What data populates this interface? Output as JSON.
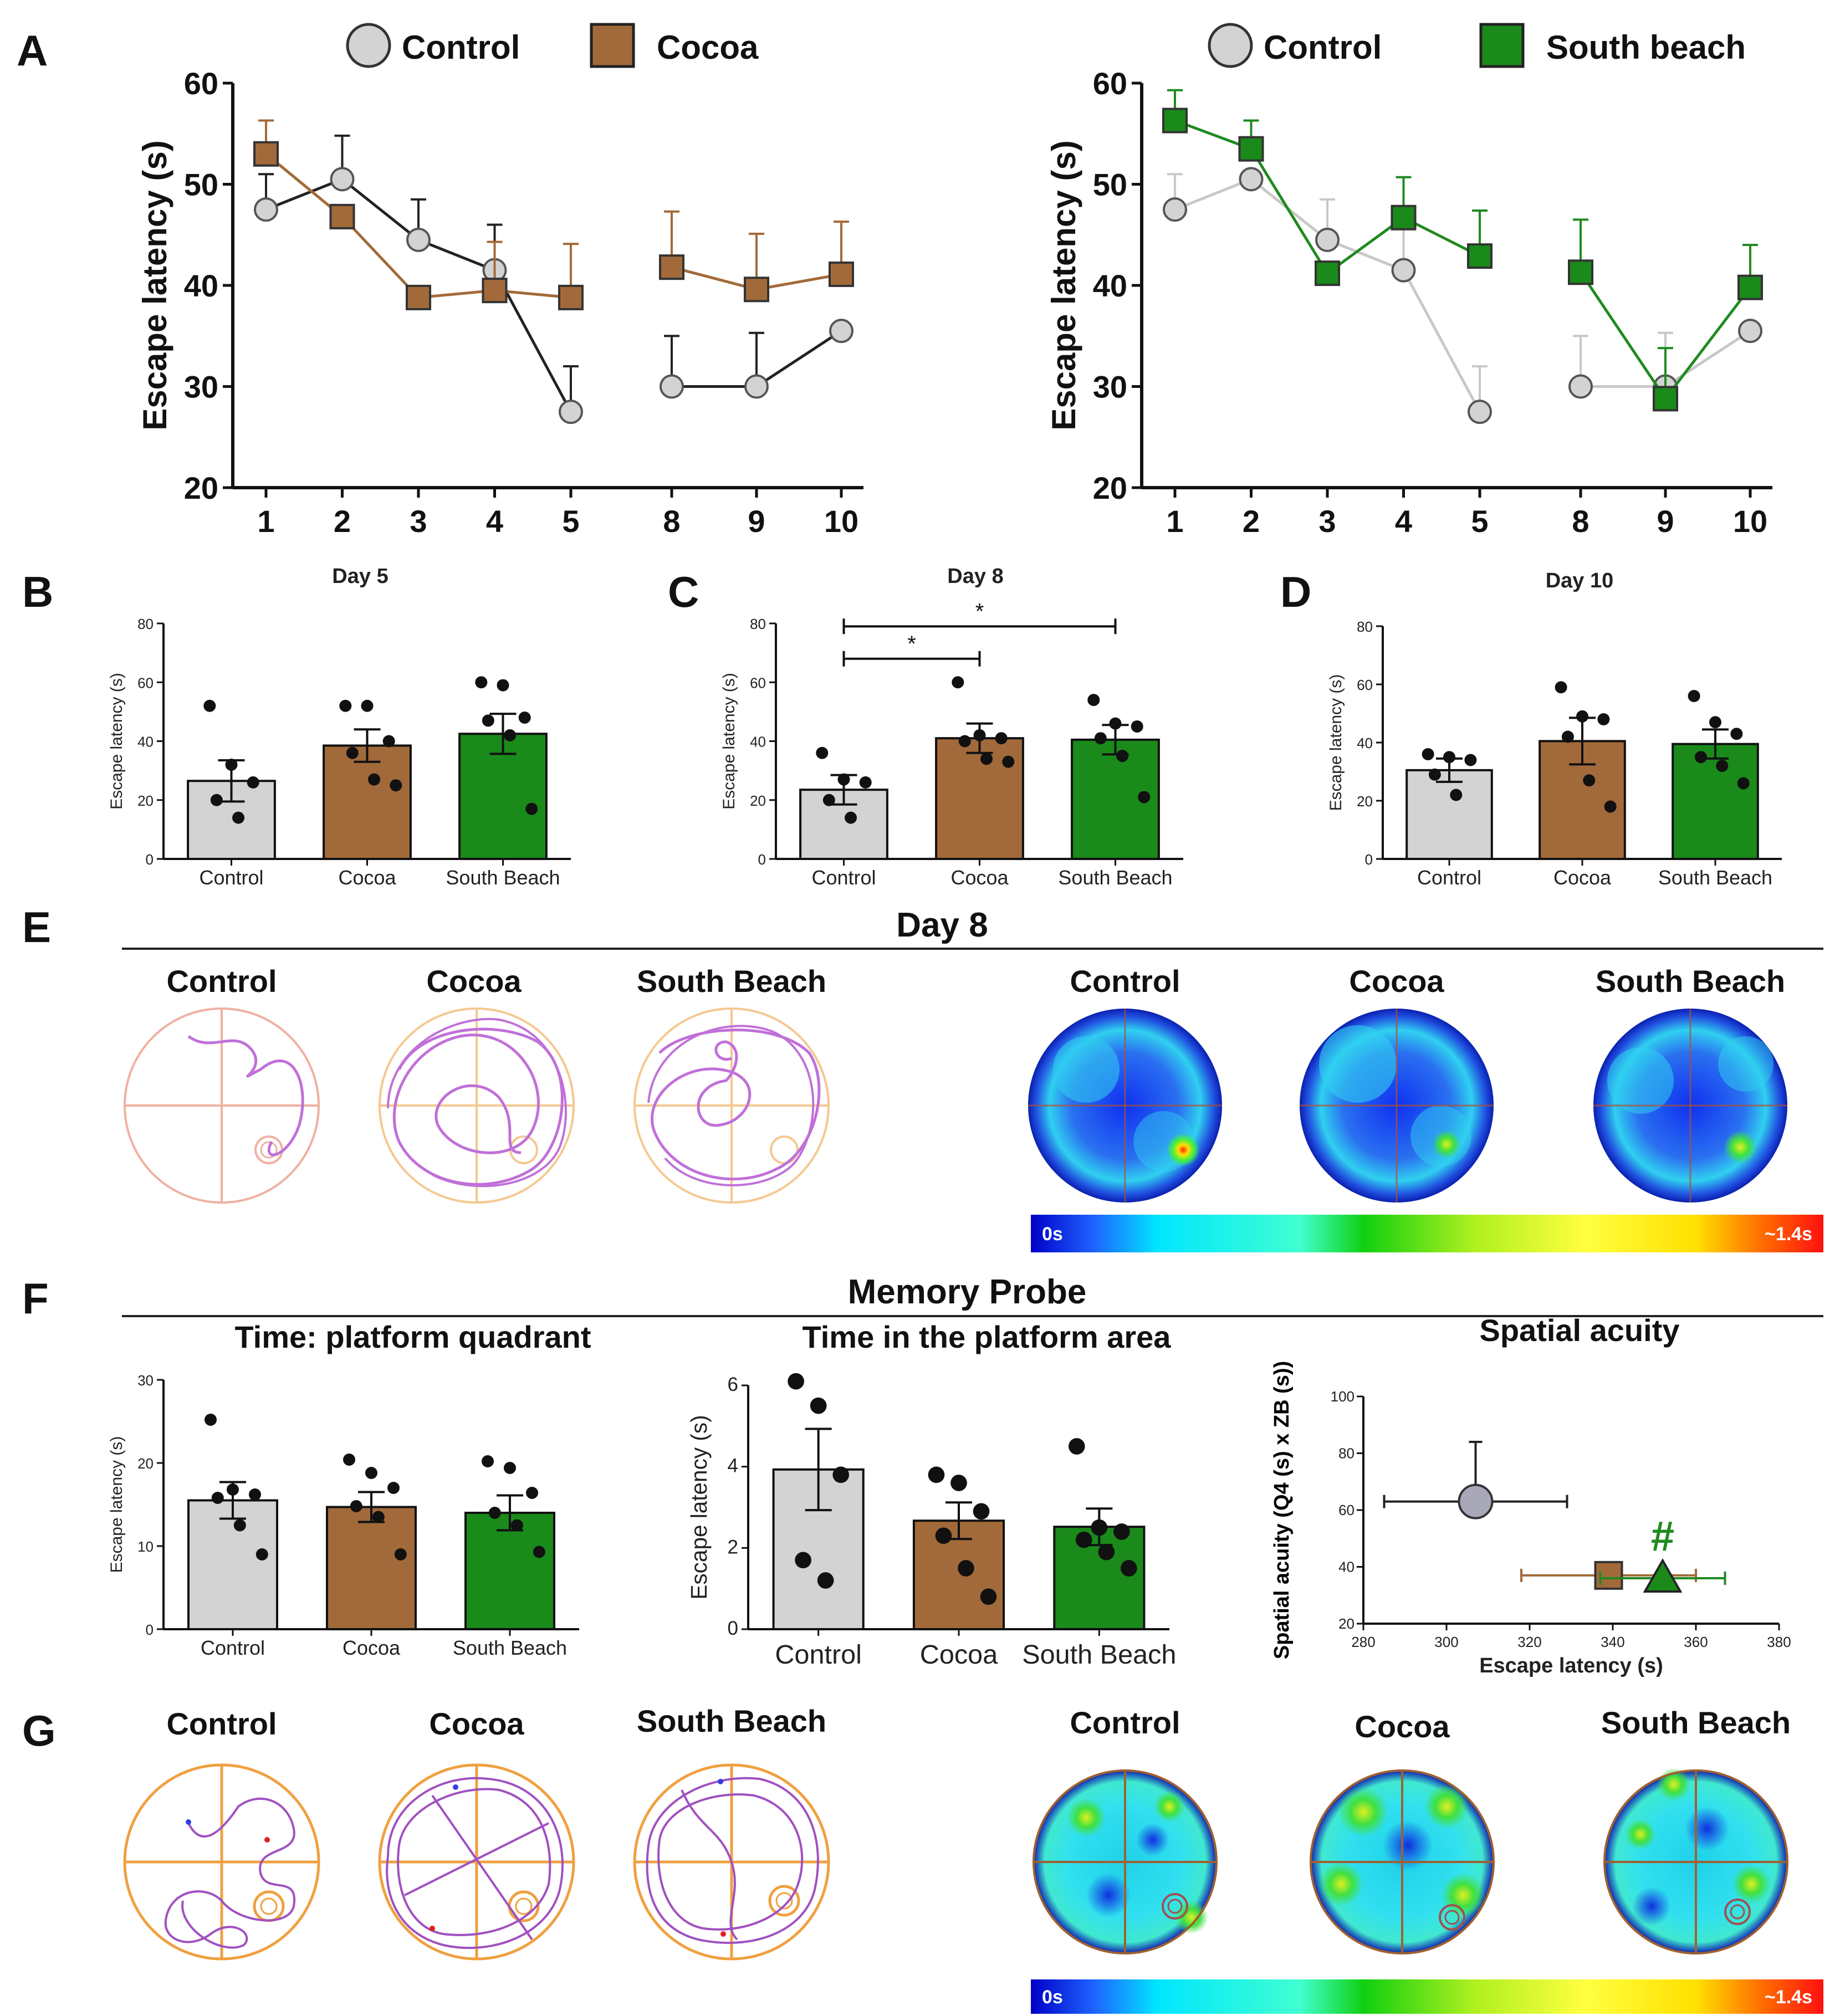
{
  "colors": {
    "control_fill": "#d3d3d3",
    "cocoa_fill": "#a26a3a",
    "southbeach_fill": "#1a8a1a",
    "control_line_left": "#222222",
    "control_line_right": "#c8c8c8",
    "cocoa_line": "#a26a3a",
    "southbeach_line": "#1f8a1f"
  },
  "panel_letters": [
    "A",
    "B",
    "C",
    "D",
    "E",
    "F",
    "G"
  ],
  "chart_data": [
    {
      "id": "A-left",
      "type": "line",
      "legend": [
        "Control",
        "Cocoa"
      ],
      "ylabel": "Escape latency (s)",
      "ylim": [
        20,
        60
      ],
      "yticks": [
        20,
        30,
        40,
        50,
        60
      ],
      "x_segments": [
        [
          1,
          2,
          3,
          4,
          5
        ],
        [
          8,
          9,
          10
        ]
      ],
      "series": [
        {
          "name": "Control",
          "x": [
            1,
            2,
            3,
            4,
            5,
            8,
            9,
            10
          ],
          "values": [
            47.5,
            50.5,
            44.5,
            41.5,
            27.5,
            30,
            30,
            35.5
          ],
          "err": [
            3.5,
            4.3,
            4.0,
            4.5,
            4.5,
            5.0,
            5.3,
            0
          ]
        },
        {
          "name": "Cocoa",
          "x": [
            1,
            2,
            3,
            4,
            5,
            8,
            9,
            10
          ],
          "values": [
            53,
            46.8,
            38.8,
            39.5,
            38.8,
            41.8,
            39.6,
            41.1
          ],
          "err": [
            3.3,
            0,
            0,
            4.8,
            5.3,
            5.5,
            5.5,
            5.2
          ]
        }
      ]
    },
    {
      "id": "A-right",
      "type": "line",
      "legend": [
        "Control",
        "South beach"
      ],
      "ylabel": "Escape latency (s)",
      "ylim": [
        20,
        60
      ],
      "yticks": [
        20,
        30,
        40,
        50,
        60
      ],
      "x_segments": [
        [
          1,
          2,
          3,
          4,
          5
        ],
        [
          8,
          9,
          10
        ]
      ],
      "series": [
        {
          "name": "Control",
          "x": [
            1,
            2,
            3,
            4,
            5,
            8,
            9,
            10
          ],
          "values": [
            47.5,
            50.5,
            44.5,
            41.5,
            27.5,
            30,
            30,
            35.5
          ],
          "err": [
            3.5,
            0,
            4.0,
            4.5,
            4.5,
            5.0,
            5.3,
            0
          ]
        },
        {
          "name": "South beach",
          "x": [
            1,
            2,
            3,
            4,
            5,
            8,
            9,
            10
          ],
          "values": [
            56.3,
            53.5,
            41.2,
            46.7,
            42.9,
            41.3,
            28.8,
            39.8
          ],
          "err": [
            3.0,
            2.8,
            0,
            4.0,
            4.5,
            5.2,
            5.0,
            4.2
          ]
        }
      ]
    },
    {
      "id": "B",
      "type": "bar",
      "title": "Day 5",
      "ylabel": "Escape latency (s)",
      "ylim": [
        0,
        80
      ],
      "yticks": [
        0,
        20,
        40,
        60,
        80
      ],
      "categories": [
        "Control",
        "Cocoa",
        "South Beach"
      ],
      "values": [
        26.5,
        38.5,
        42.5
      ],
      "err": [
        7.0,
        5.5,
        6.8
      ],
      "points": [
        [
          52,
          32,
          26,
          20,
          14
        ],
        [
          52,
          52,
          40,
          36,
          27,
          25
        ],
        [
          60,
          59,
          48,
          47,
          42,
          17
        ]
      ]
    },
    {
      "id": "C",
      "type": "bar",
      "title": "Day 8",
      "ylabel": "Escape latency (s)",
      "ylim": [
        0,
        80
      ],
      "yticks": [
        0,
        20,
        40,
        60,
        80
      ],
      "categories": [
        "Control",
        "Cocoa",
        "South Beach"
      ],
      "values": [
        23.5,
        41,
        40.5
      ],
      "err": [
        5.0,
        5.0,
        5.0
      ],
      "points": [
        [
          36,
          27,
          26,
          20,
          14
        ],
        [
          60,
          42,
          41,
          40,
          34,
          33
        ],
        [
          54,
          46,
          45,
          41,
          35,
          21
        ]
      ],
      "significance": [
        {
          "from": 0,
          "to": 1,
          "label": "*"
        },
        {
          "from": 0,
          "to": 2,
          "label": "*"
        }
      ]
    },
    {
      "id": "D",
      "type": "bar",
      "title": "Day 10",
      "ylabel": "Escape latency (s)",
      "ylim": [
        0,
        80
      ],
      "yticks": [
        0,
        20,
        40,
        60,
        80
      ],
      "categories": [
        "Control",
        "Cocoa",
        "South Beach"
      ],
      "values": [
        30.5,
        40.5,
        39.5
      ],
      "err": [
        4.0,
        8.0,
        5.0
      ],
      "points": [
        [
          36,
          35,
          34,
          29,
          22
        ],
        [
          59,
          49,
          48,
          42,
          27,
          18
        ],
        [
          56,
          47,
          43,
          35,
          32,
          26
        ]
      ]
    },
    {
      "id": "F-left",
      "type": "bar",
      "title": "Time: platform quadrant",
      "ylabel": "Escape latency (s)",
      "ylim": [
        0,
        30
      ],
      "yticks": [
        0,
        10,
        20,
        30
      ],
      "categories": [
        "Control",
        "Cocoa",
        "South Beach"
      ],
      "values": [
        15.5,
        14.7,
        14
      ],
      "err": [
        2.2,
        1.8,
        2.1
      ],
      "points": [
        [
          25.2,
          16.8,
          16.2,
          15.8,
          12.5,
          9.0
        ],
        [
          20.4,
          18.8,
          17.0,
          14.8,
          13.5,
          9.0
        ],
        [
          20.2,
          19.4,
          16.4,
          14.0,
          12.5,
          9.3
        ]
      ]
    },
    {
      "id": "F-middle",
      "type": "bar",
      "title": "Time in the platform area",
      "ylabel": "Escape latency (s)",
      "ylim": [
        0,
        6
      ],
      "yticks": [
        0,
        2,
        4,
        6
      ],
      "categories": [
        "Control",
        "Cocoa",
        "South Beach"
      ],
      "values": [
        3.93,
        2.67,
        2.52
      ],
      "err": [
        1.0,
        0.45,
        0.45
      ],
      "points": [
        [
          6.1,
          5.5,
          3.8,
          1.7,
          1.2
        ],
        [
          3.8,
          3.6,
          2.9,
          2.3,
          1.5,
          0.8
        ],
        [
          4.5,
          2.5,
          2.4,
          2.2,
          1.9,
          1.5
        ]
      ]
    },
    {
      "id": "F-right",
      "type": "scatter",
      "title": "Spatial acuity",
      "xlabel": "Escape latency (s)",
      "ylabel": "Spatial acuity (Q4 (s) x ZB (s))",
      "xlim": [
        280,
        380
      ],
      "ylim": [
        20,
        100
      ],
      "xticks": [
        280,
        300,
        320,
        340,
        360,
        380
      ],
      "yticks": [
        20,
        40,
        60,
        80,
        100
      ],
      "series": [
        {
          "name": "Control",
          "x": 307,
          "y": 63,
          "xerr": 22,
          "yerr": 21,
          "marker": "circle"
        },
        {
          "name": "Cocoa",
          "x": 339,
          "y": 37,
          "xerr": 21,
          "yerr": 0,
          "marker": "square"
        },
        {
          "name": "South Beach",
          "x": 352,
          "y": 36,
          "xerr": 15,
          "yerr": 0,
          "marker": "triangle"
        }
      ],
      "annotation": "#"
    }
  ],
  "section_titles": {
    "E": "Day 8",
    "F": "Memory Probe"
  },
  "group_labels": [
    "Control",
    "Cocoa",
    "South Beach"
  ],
  "heatmap_scale": {
    "min_label": "0s",
    "max_label": "~1.4s"
  }
}
